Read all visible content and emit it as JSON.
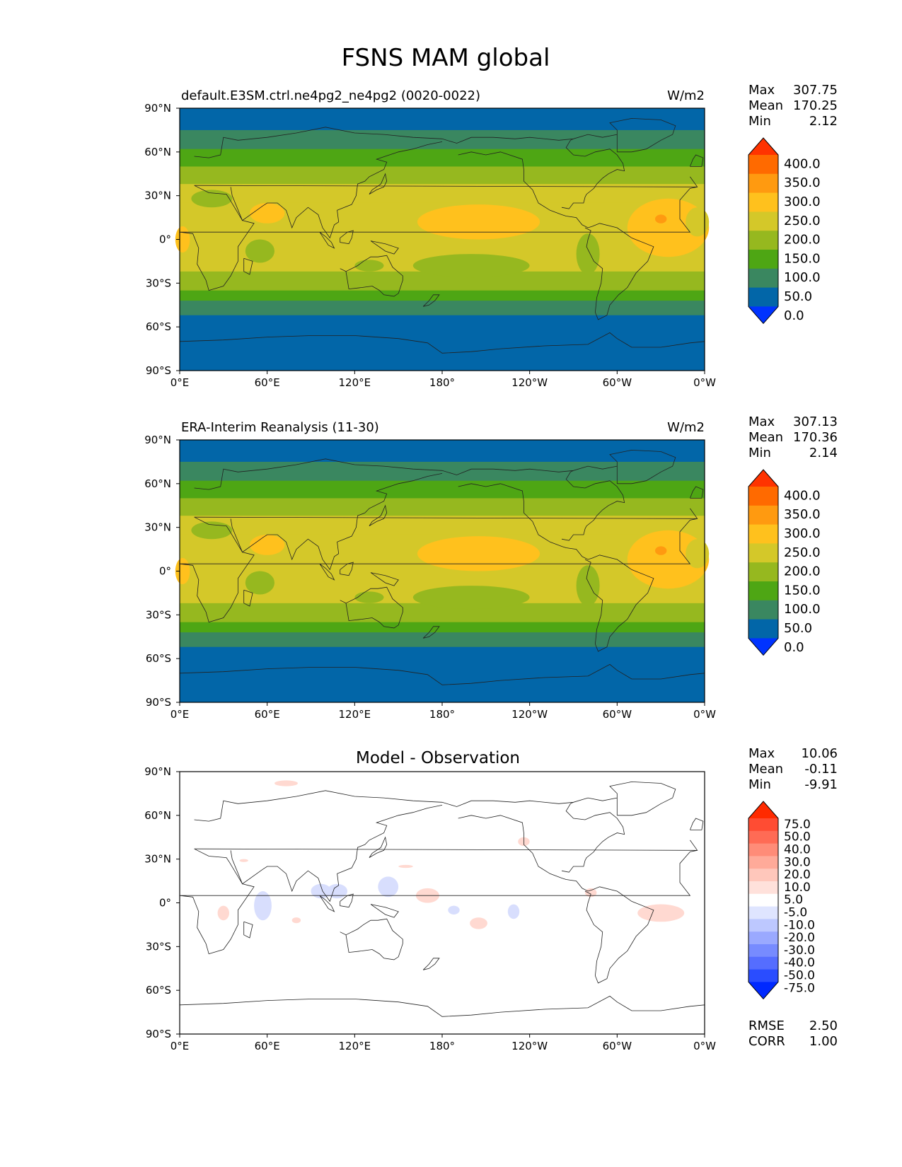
{
  "title": "FSNS MAM global",
  "chart_data": [
    {
      "type": "heatmap",
      "title": "default.E3SM.ctrl.ne4pg2_ne4pg2 (0020-0022)",
      "units": "W/m2",
      "stats": {
        "max_label": "Max",
        "max": "307.75",
        "mean_label": "Mean",
        "mean": "170.25",
        "min_label": "Min",
        "min": "2.12"
      },
      "x_ticks": [
        "0°E",
        "60°E",
        "120°E",
        "180°",
        "120°W",
        "60°W",
        "0°W"
      ],
      "y_ticks": [
        "90°N",
        "60°N",
        "30°N",
        "0°",
        "30°S",
        "60°S",
        "90°S"
      ],
      "xlim": [
        0,
        360
      ],
      "ylim": [
        -90,
        90
      ],
      "colorbar": {
        "labels": [
          "400.0",
          "350.0",
          "300.0",
          "250.0",
          "200.0",
          "150.0",
          "100.0",
          "50.0",
          "0.0"
        ],
        "colors": [
          "#ff3300",
          "#ff6a00",
          "#ff9a10",
          "#ffc11d",
          "#d4c829",
          "#96b81f",
          "#4ea614",
          "#3a8760",
          "#0266a8",
          "#0033ff"
        ]
      },
      "field_bands": {
        "lat_edges": [
          90,
          75,
          62,
          50,
          38,
          25,
          -10,
          -22,
          -35,
          -42,
          -52,
          -62,
          -90
        ],
        "band_colors": [
          "#0266a8",
          "#3a8760",
          "#4ea614",
          "#96b81f",
          "#d4c829",
          "#d4c829",
          "#d4c829",
          "#96b81f",
          "#4ea614",
          "#3a8760",
          "#0266a8",
          "#0266a8"
        ]
      }
    },
    {
      "type": "heatmap",
      "title": "ERA-Interim Reanalysis (11-30)",
      "units": "W/m2",
      "stats": {
        "max_label": "Max",
        "max": "307.13",
        "mean_label": "Mean",
        "mean": "170.36",
        "min_label": "Min",
        "min": "2.14"
      },
      "x_ticks": [
        "0°E",
        "60°E",
        "120°E",
        "180°",
        "120°W",
        "60°W",
        "0°W"
      ],
      "y_ticks": [
        "90°N",
        "60°N",
        "30°N",
        "0°",
        "30°S",
        "60°S",
        "90°S"
      ],
      "xlim": [
        0,
        360
      ],
      "ylim": [
        -90,
        90
      ],
      "colorbar": {
        "labels": [
          "400.0",
          "350.0",
          "300.0",
          "250.0",
          "200.0",
          "150.0",
          "100.0",
          "50.0",
          "0.0"
        ],
        "colors": [
          "#ff3300",
          "#ff6a00",
          "#ff9a10",
          "#ffc11d",
          "#d4c829",
          "#96b81f",
          "#4ea614",
          "#3a8760",
          "#0266a8",
          "#0033ff"
        ]
      },
      "field_bands": {
        "lat_edges": [
          90,
          75,
          62,
          50,
          38,
          25,
          -10,
          -22,
          -35,
          -42,
          -52,
          -62,
          -90
        ],
        "band_colors": [
          "#0266a8",
          "#3a8760",
          "#4ea614",
          "#96b81f",
          "#d4c829",
          "#d4c829",
          "#d4c829",
          "#96b81f",
          "#4ea614",
          "#3a8760",
          "#0266a8",
          "#0266a8"
        ]
      }
    },
    {
      "type": "heatmap",
      "title": "Model - Observation",
      "units": "",
      "stats": {
        "max_label": "Max",
        "max": "10.06",
        "mean_label": "Mean",
        "mean": "-0.11",
        "min_label": "Min",
        "min": "-9.91"
      },
      "extra_stats": {
        "rmse_label": "RMSE",
        "rmse": "2.50",
        "corr_label": "CORR",
        "corr": "1.00"
      },
      "x_ticks": [
        "0°E",
        "60°E",
        "120°E",
        "180°",
        "120°W",
        "60°W",
        "0°W"
      ],
      "y_ticks": [
        "90°N",
        "60°N",
        "30°N",
        "0°",
        "30°S",
        "60°S",
        "90°S"
      ],
      "xlim": [
        0,
        360
      ],
      "ylim": [
        -90,
        90
      ],
      "colorbar": {
        "labels": [
          "75.0",
          "50.0",
          "40.0",
          "30.0",
          "20.0",
          "10.0",
          "5.0",
          "-5.0",
          "-10.0",
          "-20.0",
          "-30.0",
          "-40.0",
          "-50.0",
          "-75.0"
        ],
        "colors": [
          "#ff2a00",
          "#ff4c33",
          "#ff6b55",
          "#ff8c78",
          "#ffaa99",
          "#ffc7bb",
          "#ffe1db",
          "#ffffff",
          "#dfe5ff",
          "#bdc8ff",
          "#9aa9ff",
          "#778bff",
          "#556dff",
          "#2a4dff",
          "#0029ff"
        ]
      },
      "diff_patches": [
        {
          "lon": 97,
          "lat": 8,
          "rlon": 7,
          "rlat": 5,
          "sign": -1
        },
        {
          "lon": 108,
          "lat": 8,
          "rlon": 7,
          "rlat": 5,
          "sign": -1
        },
        {
          "lon": 57,
          "lat": -2,
          "rlon": 6,
          "rlat": 10,
          "sign": -1
        },
        {
          "lon": 143,
          "lat": 11,
          "rlon": 7,
          "rlat": 7,
          "sign": -1
        },
        {
          "lon": 188,
          "lat": -5,
          "rlon": 4,
          "rlat": 3,
          "sign": -1
        },
        {
          "lon": 229,
          "lat": -6,
          "rlon": 4,
          "rlat": 5,
          "sign": -1
        },
        {
          "lon": 30,
          "lat": -7,
          "rlon": 4,
          "rlat": 5,
          "sign": 1
        },
        {
          "lon": 170,
          "lat": 5,
          "rlon": 8,
          "rlat": 5,
          "sign": 1
        },
        {
          "lon": 236,
          "lat": 42,
          "rlon": 4,
          "rlat": 3,
          "sign": 1
        },
        {
          "lon": 205,
          "lat": -14,
          "rlon": 6,
          "rlat": 4,
          "sign": 1
        },
        {
          "lon": 330,
          "lat": -7,
          "rlon": 16,
          "rlat": 6,
          "sign": 1
        },
        {
          "lon": 282,
          "lat": 7,
          "rlon": 4,
          "rlat": 3,
          "sign": 1
        },
        {
          "lon": 80,
          "lat": -12,
          "rlon": 3,
          "rlat": 2,
          "sign": 1
        },
        {
          "lon": 155,
          "lat": 25,
          "rlon": 5,
          "rlat": 1,
          "sign": 1
        },
        {
          "lon": 73,
          "lat": 82,
          "rlon": 8,
          "rlat": 2,
          "sign": 1
        },
        {
          "lon": 44,
          "lat": 29,
          "rlon": 3,
          "rlat": 1,
          "sign": 1
        }
      ]
    }
  ]
}
